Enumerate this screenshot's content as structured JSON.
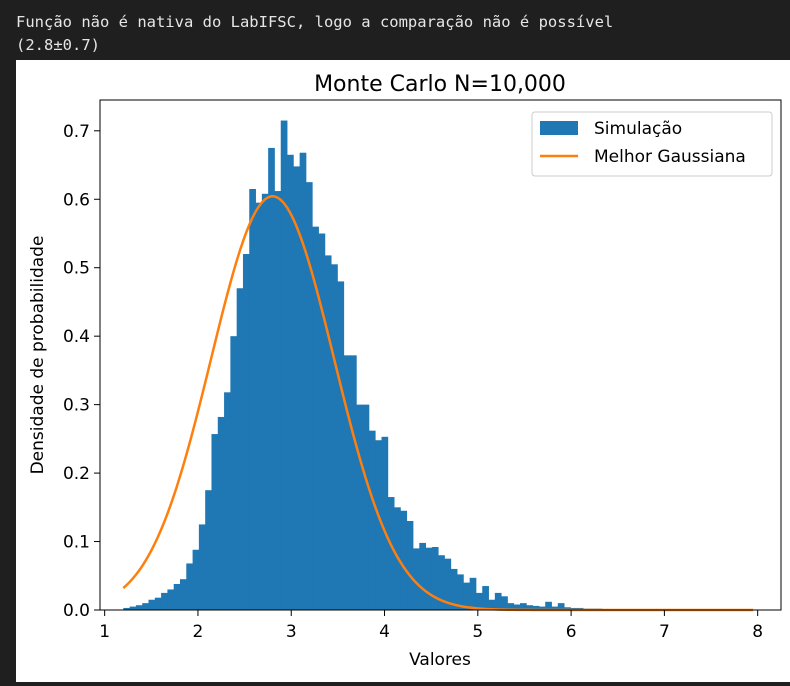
{
  "console": {
    "line1": "Função não é nativa do LabIFSC, logo a comparação não é possível",
    "line2": "(2.8±0.7)"
  },
  "chart_data": {
    "type": "bar",
    "title": "Monte Carlo N=10,000",
    "xlabel": "Valores",
    "ylabel": "Densidade de probabilidade",
    "xlim": [
      0.95,
      8.25
    ],
    "ylim": [
      0,
      0.745
    ],
    "xticks": [
      1,
      2,
      3,
      4,
      5,
      6,
      7,
      8
    ],
    "yticks": [
      0.0,
      0.1,
      0.2,
      0.3,
      0.4,
      0.5,
      0.6,
      0.7
    ],
    "ytick_labels": [
      "0.0",
      "0.1",
      "0.2",
      "0.3",
      "0.4",
      "0.5",
      "0.6",
      "0.7"
    ],
    "grid": false,
    "legend_position": "top-right",
    "histogram": {
      "name": "Simulação",
      "color": "#1f77b4",
      "bin_start": 1.2,
      "bin_width": 0.0675,
      "densities": [
        0.003,
        0.005,
        0.007,
        0.01,
        0.015,
        0.018,
        0.025,
        0.03,
        0.038,
        0.045,
        0.068,
        0.088,
        0.125,
        0.175,
        0.257,
        0.282,
        0.318,
        0.4,
        0.47,
        0.52,
        0.615,
        0.595,
        0.608,
        0.675,
        0.612,
        0.715,
        0.665,
        0.648,
        0.668,
        0.625,
        0.56,
        0.55,
        0.518,
        0.505,
        0.48,
        0.372,
        0.372,
        0.3,
        0.3,
        0.262,
        0.248,
        0.253,
        0.165,
        0.15,
        0.145,
        0.13,
        0.09,
        0.098,
        0.091,
        0.092,
        0.08,
        0.075,
        0.06,
        0.052,
        0.04,
        0.047,
        0.025,
        0.035,
        0.015,
        0.025,
        0.02,
        0.01,
        0.008,
        0.01,
        0.007,
        0.006,
        0.005,
        0.012,
        0.005,
        0.01,
        0.004,
        0.003,
        0.003,
        0.002,
        0.002,
        0.002,
        0.001,
        0.001,
        0.001,
        0.001,
        0.001,
        0.001,
        0.001,
        0.001,
        0.001,
        0.001,
        0.001,
        0.001,
        0.001,
        0.001,
        0.001,
        0.001,
        0.001,
        0.001,
        0.001,
        0.001,
        0.001,
        0.001,
        0.001,
        0.001
      ]
    },
    "gaussian": {
      "name": "Melhor Gaussiana",
      "color": "#ff7f0e",
      "mean": 2.8,
      "sigma": 0.66,
      "x_range": [
        1.2,
        7.95
      ]
    }
  }
}
